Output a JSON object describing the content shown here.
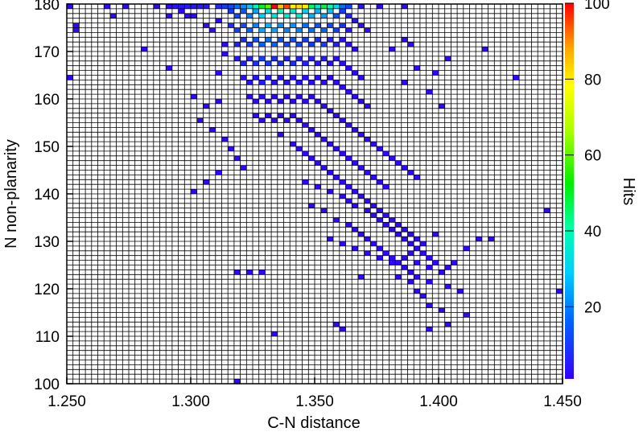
{
  "chart_data": {
    "type": "heatmap",
    "title": "",
    "xlabel": "C-N distance",
    "ylabel": "N non-planarity",
    "colorbar_label": "Hits",
    "xlim": [
      1.25,
      1.45
    ],
    "ylim": [
      100,
      180
    ],
    "x_ticks": [
      "1.250",
      "1.300",
      "1.350",
      "1.400",
      "1.450"
    ],
    "y_ticks": [
      "100",
      "110",
      "120",
      "130",
      "140",
      "150",
      "160",
      "170",
      "180"
    ],
    "colorbar_range": [
      1,
      100
    ],
    "colorbar_ticks": [
      "20",
      "40",
      "60",
      "80",
      "100"
    ],
    "x_bin_width": 0.0025,
    "y_bin_width": 1,
    "grid": true,
    "empty_bin_color": "#ffffff",
    "colormap": "rainbow",
    "cells": [
      [
        1.251,
        180,
        2
      ],
      [
        1.266,
        180,
        2
      ],
      [
        1.273,
        180,
        2
      ],
      [
        1.286,
        180,
        2
      ],
      [
        1.291,
        180,
        2
      ],
      [
        1.293,
        180,
        4
      ],
      [
        1.296,
        180,
        4
      ],
      [
        1.298,
        180,
        5
      ],
      [
        1.301,
        180,
        4
      ],
      [
        1.303,
        180,
        5
      ],
      [
        1.306,
        180,
        4
      ],
      [
        1.311,
        180,
        7
      ],
      [
        1.313,
        180,
        10
      ],
      [
        1.316,
        180,
        12
      ],
      [
        1.318,
        180,
        18
      ],
      [
        1.321,
        180,
        22
      ],
      [
        1.323,
        180,
        28
      ],
      [
        1.326,
        180,
        38
      ],
      [
        1.328,
        180,
        50
      ],
      [
        1.331,
        180,
        60
      ],
      [
        1.333,
        180,
        100
      ],
      [
        1.336,
        180,
        85
      ],
      [
        1.338,
        180,
        95
      ],
      [
        1.341,
        180,
        80
      ],
      [
        1.343,
        180,
        82
      ],
      [
        1.346,
        180,
        80
      ],
      [
        1.348,
        180,
        45
      ],
      [
        1.351,
        180,
        35
      ],
      [
        1.353,
        180,
        48
      ],
      [
        1.356,
        180,
        40
      ],
      [
        1.358,
        180,
        32
      ],
      [
        1.361,
        180,
        18
      ],
      [
        1.363,
        180,
        12
      ],
      [
        1.368,
        180,
        4
      ],
      [
        1.376,
        180,
        2
      ],
      [
        1.386,
        180,
        2
      ],
      [
        1.253,
        175,
        2
      ],
      [
        1.253,
        174,
        2
      ],
      [
        1.268,
        177,
        2
      ],
      [
        1.281,
        170,
        2
      ],
      [
        1.291,
        177,
        2
      ],
      [
        1.291,
        166,
        2
      ],
      [
        1.296,
        178,
        2
      ],
      [
        1.298,
        177,
        2
      ],
      [
        1.301,
        177,
        2
      ],
      [
        1.306,
        175,
        2
      ],
      [
        1.308,
        174,
        2
      ],
      [
        1.311,
        176,
        2
      ],
      [
        1.311,
        165,
        2
      ],
      [
        1.313,
        171,
        2
      ],
      [
        1.313,
        169,
        2
      ],
      [
        1.251,
        164,
        2
      ],
      [
        1.418,
        170,
        2
      ],
      [
        1.431,
        164,
        2
      ],
      [
        1.381,
        170,
        2
      ],
      [
        1.386,
        172,
        2
      ],
      [
        1.388,
        171,
        2
      ],
      [
        1.391,
        166,
        2
      ],
      [
        1.396,
        161,
        2
      ],
      [
        1.401,
        158,
        2
      ],
      [
        1.386,
        163,
        2
      ],
      [
        1.398,
        165,
        2
      ],
      [
        1.403,
        168,
        2
      ],
      [
        1.316,
        178,
        10
      ],
      [
        1.318,
        177,
        12
      ],
      [
        1.321,
        178,
        14
      ],
      [
        1.323,
        177,
        20
      ],
      [
        1.326,
        178,
        24
      ],
      [
        1.328,
        177,
        30
      ],
      [
        1.331,
        178,
        32
      ],
      [
        1.333,
        177,
        35
      ],
      [
        1.336,
        178,
        38
      ],
      [
        1.338,
        177,
        36
      ],
      [
        1.341,
        178,
        34
      ],
      [
        1.343,
        177,
        36
      ],
      [
        1.346,
        178,
        30
      ],
      [
        1.348,
        177,
        26
      ],
      [
        1.351,
        178,
        26
      ],
      [
        1.353,
        177,
        24
      ],
      [
        1.356,
        178,
        28
      ],
      [
        1.358,
        177,
        14
      ],
      [
        1.361,
        178,
        10
      ],
      [
        1.363,
        177,
        6
      ],
      [
        1.366,
        176,
        4
      ],
      [
        1.368,
        175,
        3
      ],
      [
        1.371,
        174,
        2
      ],
      [
        1.316,
        175,
        8
      ],
      [
        1.318,
        174,
        10
      ],
      [
        1.321,
        175,
        12
      ],
      [
        1.323,
        174,
        16
      ],
      [
        1.326,
        175,
        20
      ],
      [
        1.328,
        174,
        24
      ],
      [
        1.331,
        175,
        26
      ],
      [
        1.333,
        174,
        24
      ],
      [
        1.336,
        175,
        22
      ],
      [
        1.338,
        174,
        20
      ],
      [
        1.341,
        175,
        22
      ],
      [
        1.343,
        174,
        20
      ],
      [
        1.346,
        175,
        18
      ],
      [
        1.348,
        174,
        18
      ],
      [
        1.351,
        175,
        14
      ],
      [
        1.353,
        174,
        16
      ],
      [
        1.356,
        175,
        12
      ],
      [
        1.358,
        174,
        10
      ],
      [
        1.361,
        175,
        8
      ],
      [
        1.363,
        174,
        4
      ],
      [
        1.318,
        171,
        6
      ],
      [
        1.321,
        172,
        8
      ],
      [
        1.323,
        171,
        10
      ],
      [
        1.326,
        172,
        14
      ],
      [
        1.328,
        171,
        16
      ],
      [
        1.331,
        172,
        18
      ],
      [
        1.333,
        171,
        16
      ],
      [
        1.336,
        172,
        14
      ],
      [
        1.338,
        171,
        12
      ],
      [
        1.341,
        172,
        14
      ],
      [
        1.343,
        171,
        12
      ],
      [
        1.346,
        172,
        10
      ],
      [
        1.348,
        171,
        10
      ],
      [
        1.351,
        172,
        8
      ],
      [
        1.353,
        171,
        10
      ],
      [
        1.356,
        172,
        6
      ],
      [
        1.358,
        171,
        6
      ],
      [
        1.361,
        172,
        4
      ],
      [
        1.363,
        171,
        3
      ],
      [
        1.366,
        170,
        2
      ],
      [
        1.318,
        168,
        4
      ],
      [
        1.321,
        167,
        6
      ],
      [
        1.323,
        168,
        6
      ],
      [
        1.326,
        167,
        8
      ],
      [
        1.328,
        168,
        10
      ],
      [
        1.331,
        167,
        10
      ],
      [
        1.333,
        168,
        8
      ],
      [
        1.336,
        167,
        8
      ],
      [
        1.338,
        168,
        6
      ],
      [
        1.341,
        167,
        8
      ],
      [
        1.343,
        168,
        6
      ],
      [
        1.346,
        167,
        6
      ],
      [
        1.348,
        168,
        6
      ],
      [
        1.351,
        167,
        4
      ],
      [
        1.353,
        168,
        5
      ],
      [
        1.356,
        167,
        4
      ],
      [
        1.358,
        168,
        3
      ],
      [
        1.361,
        167,
        3
      ],
      [
        1.363,
        166,
        2
      ],
      [
        1.366,
        165,
        2
      ],
      [
        1.368,
        164,
        2
      ],
      [
        1.321,
        164,
        3
      ],
      [
        1.323,
        163,
        4
      ],
      [
        1.326,
        164,
        4
      ],
      [
        1.328,
        163,
        5
      ],
      [
        1.331,
        164,
        5
      ],
      [
        1.333,
        163,
        4
      ],
      [
        1.336,
        164,
        4
      ],
      [
        1.338,
        163,
        4
      ],
      [
        1.341,
        164,
        3
      ],
      [
        1.343,
        163,
        4
      ],
      [
        1.346,
        164,
        3
      ],
      [
        1.348,
        163,
        3
      ],
      [
        1.351,
        164,
        3
      ],
      [
        1.353,
        163,
        3
      ],
      [
        1.356,
        164,
        2
      ],
      [
        1.358,
        163,
        2
      ],
      [
        1.361,
        162,
        2
      ],
      [
        1.363,
        161,
        2
      ],
      [
        1.366,
        160,
        2
      ],
      [
        1.368,
        159,
        2
      ],
      [
        1.371,
        158,
        2
      ],
      [
        1.323,
        160,
        2
      ],
      [
        1.326,
        159,
        2
      ],
      [
        1.328,
        160,
        3
      ],
      [
        1.331,
        159,
        2
      ],
      [
        1.333,
        160,
        2
      ],
      [
        1.336,
        159,
        3
      ],
      [
        1.338,
        160,
        2
      ],
      [
        1.341,
        159,
        2
      ],
      [
        1.343,
        160,
        2
      ],
      [
        1.346,
        159,
        2
      ],
      [
        1.348,
        160,
        2
      ],
      [
        1.351,
        159,
        2
      ],
      [
        1.353,
        158,
        2
      ],
      [
        1.356,
        157,
        2
      ],
      [
        1.358,
        156,
        2
      ],
      [
        1.361,
        155,
        2
      ],
      [
        1.363,
        154,
        2
      ],
      [
        1.366,
        153,
        2
      ],
      [
        1.368,
        152,
        2
      ],
      [
        1.371,
        151,
        2
      ],
      [
        1.373,
        150,
        2
      ],
      [
        1.376,
        149,
        2
      ],
      [
        1.378,
        148,
        2
      ],
      [
        1.381,
        147,
        2
      ],
      [
        1.383,
        146,
        2
      ],
      [
        1.386,
        145,
        2
      ],
      [
        1.388,
        144,
        2
      ],
      [
        1.391,
        143,
        2
      ],
      [
        1.326,
        156,
        2
      ],
      [
        1.328,
        155,
        2
      ],
      [
        1.331,
        156,
        2
      ],
      [
        1.333,
        155,
        2
      ],
      [
        1.336,
        156,
        2
      ],
      [
        1.338,
        155,
        2
      ],
      [
        1.341,
        156,
        2
      ],
      [
        1.343,
        155,
        2
      ],
      [
        1.346,
        154,
        2
      ],
      [
        1.348,
        153,
        2
      ],
      [
        1.351,
        152,
        2
      ],
      [
        1.353,
        151,
        2
      ],
      [
        1.356,
        150,
        2
      ],
      [
        1.358,
        149,
        2
      ],
      [
        1.361,
        148,
        2
      ],
      [
        1.363,
        147,
        2
      ],
      [
        1.366,
        146,
        2
      ],
      [
        1.368,
        145,
        2
      ],
      [
        1.371,
        144,
        2
      ],
      [
        1.373,
        143,
        2
      ],
      [
        1.376,
        142,
        2
      ],
      [
        1.378,
        141,
        2
      ],
      [
        1.301,
        160,
        2
      ],
      [
        1.306,
        158,
        2
      ],
      [
        1.311,
        159,
        2
      ],
      [
        1.303,
        155,
        2
      ],
      [
        1.308,
        153,
        2
      ],
      [
        1.313,
        151,
        2
      ],
      [
        1.316,
        149,
        2
      ],
      [
        1.318,
        147,
        2
      ],
      [
        1.321,
        145,
        2
      ],
      [
        1.311,
        144,
        2
      ],
      [
        1.306,
        142,
        2
      ],
      [
        1.301,
        140,
        2
      ],
      [
        1.336,
        152,
        2
      ],
      [
        1.341,
        150,
        2
      ],
      [
        1.343,
        149,
        2
      ],
      [
        1.346,
        148,
        2
      ],
      [
        1.348,
        147,
        2
      ],
      [
        1.351,
        146,
        2
      ],
      [
        1.353,
        145,
        2
      ],
      [
        1.356,
        144,
        2
      ],
      [
        1.358,
        143,
        2
      ],
      [
        1.361,
        142,
        2
      ],
      [
        1.363,
        141,
        2
      ],
      [
        1.366,
        140,
        2
      ],
      [
        1.368,
        139,
        2
      ],
      [
        1.371,
        138,
        2
      ],
      [
        1.373,
        137,
        2
      ],
      [
        1.376,
        136,
        2
      ],
      [
        1.378,
        135,
        2
      ],
      [
        1.381,
        134,
        2
      ],
      [
        1.383,
        133,
        2
      ],
      [
        1.386,
        132,
        2
      ],
      [
        1.388,
        131,
        2
      ],
      [
        1.391,
        130,
        2
      ],
      [
        1.346,
        142,
        2
      ],
      [
        1.351,
        141,
        2
      ],
      [
        1.356,
        140,
        2
      ],
      [
        1.361,
        139,
        2
      ],
      [
        1.363,
        138,
        2
      ],
      [
        1.366,
        137,
        2
      ],
      [
        1.371,
        136,
        2
      ],
      [
        1.373,
        135,
        2
      ],
      [
        1.376,
        134,
        2
      ],
      [
        1.378,
        133,
        2
      ],
      [
        1.381,
        132,
        2
      ],
      [
        1.383,
        131,
        2
      ],
      [
        1.386,
        130,
        2
      ],
      [
        1.388,
        129,
        2
      ],
      [
        1.391,
        128,
        2
      ],
      [
        1.393,
        127,
        2
      ],
      [
        1.396,
        126,
        2
      ],
      [
        1.398,
        125,
        2
      ],
      [
        1.348,
        137,
        2
      ],
      [
        1.353,
        136,
        2
      ],
      [
        1.358,
        134,
        2
      ],
      [
        1.363,
        133,
        2
      ],
      [
        1.366,
        132,
        2
      ],
      [
        1.368,
        131,
        2
      ],
      [
        1.371,
        130,
        2
      ],
      [
        1.373,
        129,
        2
      ],
      [
        1.376,
        128,
        2
      ],
      [
        1.378,
        127,
        2
      ],
      [
        1.381,
        126,
        2
      ],
      [
        1.383,
        125,
        2
      ],
      [
        1.386,
        124,
        2
      ],
      [
        1.388,
        123,
        2
      ],
      [
        1.391,
        122,
        2
      ],
      [
        1.396,
        121,
        2
      ],
      [
        1.356,
        130,
        2
      ],
      [
        1.361,
        129,
        2
      ],
      [
        1.366,
        128,
        2
      ],
      [
        1.371,
        127,
        2
      ],
      [
        1.376,
        126,
        2
      ],
      [
        1.381,
        125,
        2
      ],
      [
        1.386,
        126,
        2
      ],
      [
        1.391,
        125,
        2
      ],
      [
        1.396,
        124,
        2
      ],
      [
        1.401,
        123,
        2
      ],
      [
        1.403,
        124,
        2
      ],
      [
        1.406,
        125,
        2
      ],
      [
        1.416,
        130,
        2
      ],
      [
        1.411,
        128,
        2
      ],
      [
        1.398,
        131,
        2
      ],
      [
        1.393,
        129,
        2
      ],
      [
        1.388,
        127,
        2
      ],
      [
        1.383,
        122,
        2
      ],
      [
        1.388,
        121,
        2
      ],
      [
        1.391,
        119,
        2
      ],
      [
        1.393,
        118,
        2
      ],
      [
        1.403,
        120,
        2
      ],
      [
        1.408,
        119,
        2
      ],
      [
        1.396,
        116,
        2
      ],
      [
        1.401,
        115,
        2
      ],
      [
        1.411,
        114,
        2
      ],
      [
        1.403,
        112,
        2
      ],
      [
        1.396,
        111,
        2
      ],
      [
        1.318,
        123,
        2
      ],
      [
        1.323,
        123,
        2
      ],
      [
        1.328,
        123,
        2
      ],
      [
        1.318,
        100,
        2
      ],
      [
        1.333,
        110,
        2
      ],
      [
        1.358,
        112,
        2
      ],
      [
        1.361,
        111,
        2
      ],
      [
        1.368,
        122,
        2
      ],
      [
        1.448,
        119,
        2
      ],
      [
        1.443,
        136,
        2
      ],
      [
        1.421,
        130,
        2
      ]
    ]
  }
}
